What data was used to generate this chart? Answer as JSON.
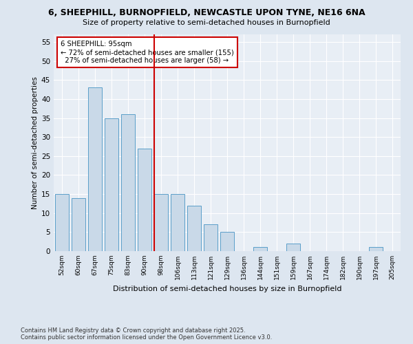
{
  "title": "6, SHEEPHILL, BURNOPFIELD, NEWCASTLE UPON TYNE, NE16 6NA",
  "subtitle": "Size of property relative to semi-detached houses in Burnopfield",
  "xlabel": "Distribution of semi-detached houses by size in Burnopfield",
  "ylabel": "Number of semi-detached properties",
  "categories": [
    "52sqm",
    "60sqm",
    "67sqm",
    "75sqm",
    "83sqm",
    "90sqm",
    "98sqm",
    "106sqm",
    "113sqm",
    "121sqm",
    "129sqm",
    "136sqm",
    "144sqm",
    "151sqm",
    "159sqm",
    "167sqm",
    "174sqm",
    "182sqm",
    "190sqm",
    "197sqm",
    "205sqm"
  ],
  "values": [
    15,
    14,
    43,
    35,
    36,
    27,
    15,
    15,
    12,
    7,
    5,
    0,
    1,
    0,
    2,
    0,
    0,
    0,
    0,
    1,
    0
  ],
  "bar_color": "#c9d9e8",
  "bar_edge_color": "#5a9ec9",
  "vline_index": 6,
  "vline_color": "#cc0000",
  "annotation_line1": "6 SHEEPHILL: 95sqm",
  "annotation_line2": "← 72% of semi-detached houses are smaller (155)",
  "annotation_line3": "  27% of semi-detached houses are larger (58) →",
  "annotation_box_color": "#cc0000",
  "ylim": [
    0,
    57
  ],
  "yticks": [
    0,
    5,
    10,
    15,
    20,
    25,
    30,
    35,
    40,
    45,
    50,
    55
  ],
  "footer": "Contains HM Land Registry data © Crown copyright and database right 2025.\nContains public sector information licensed under the Open Government Licence v3.0.",
  "bg_color": "#dde6f0",
  "plot_bg_color": "#e8eef5"
}
